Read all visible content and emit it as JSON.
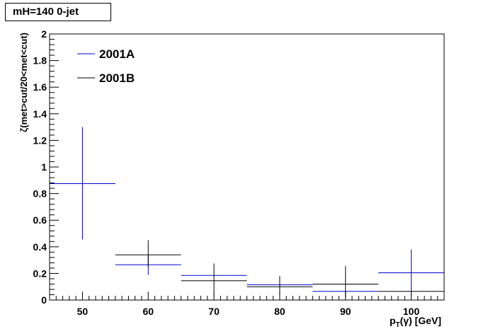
{
  "chart_data": {
    "type": "scatter",
    "title": "mH=140 0-jet",
    "xlabel_main": "p",
    "xlabel_sub": "T",
    "xlabel_rest": "(γ) [GeV]",
    "ylabel": "ζ(met>cut/20<met<cut)",
    "xlim": [
      45,
      105
    ],
    "ylim": [
      0,
      2
    ],
    "x_ticks": [
      50,
      60,
      70,
      80,
      90,
      100
    ],
    "y_ticks": [
      0,
      0.2,
      0.4,
      0.6,
      0.8,
      1,
      1.2,
      1.4,
      1.6,
      1.8,
      2
    ],
    "x_tick_labels": [
      "50",
      "60",
      "70",
      "80",
      "90",
      "100"
    ],
    "y_tick_labels": [
      "0",
      "0.2",
      "0.4",
      "0.6",
      "0.8",
      "1",
      "1.2",
      "1.4",
      "1.6",
      "1.8",
      "2"
    ],
    "legend_placement": "top-left",
    "series": [
      {
        "name": "2001A",
        "color": "#0000cc",
        "points": [
          {
            "x": 50,
            "xlo": 45,
            "xhi": 55,
            "y": 0.875,
            "ylo": 0.455,
            "yhi": 1.3
          },
          {
            "x": 60,
            "xlo": 55,
            "xhi": 65,
            "y": 0.265,
            "ylo": 0.19,
            "yhi": 0.34
          },
          {
            "x": 70,
            "xlo": 65,
            "xhi": 75,
            "y": 0.185,
            "ylo": 0.185,
            "yhi": 0.185
          },
          {
            "x": 80,
            "xlo": 75,
            "xhi": 85,
            "y": 0.115,
            "ylo": 0.115,
            "yhi": 0.115
          },
          {
            "x": 90,
            "xlo": 85,
            "xhi": 95,
            "y": 0.065,
            "ylo": 0.065,
            "yhi": 0.065
          },
          {
            "x": 100,
            "xlo": 95,
            "xhi": 105,
            "y": 0.205,
            "ylo": 0.03,
            "yhi": 0.38
          }
        ]
      },
      {
        "name": "2001B",
        "color": "#000000",
        "points": [
          {
            "x": 60,
            "xlo": 55,
            "xhi": 65,
            "y": 0.34,
            "ylo": 0.25,
            "yhi": 0.45
          },
          {
            "x": 70,
            "xlo": 65,
            "xhi": 75,
            "y": 0.145,
            "ylo": 0.03,
            "yhi": 0.275
          },
          {
            "x": 80,
            "xlo": 75,
            "xhi": 85,
            "y": 0.1,
            "ylo": 0.03,
            "yhi": 0.18
          },
          {
            "x": 90,
            "xlo": 85,
            "xhi": 95,
            "y": 0.12,
            "ylo": 0.02,
            "yhi": 0.255
          },
          {
            "x": 100,
            "xlo": 95,
            "xhi": 105,
            "y": 0.065,
            "ylo": 0.065,
            "yhi": 0.065
          }
        ]
      }
    ]
  }
}
